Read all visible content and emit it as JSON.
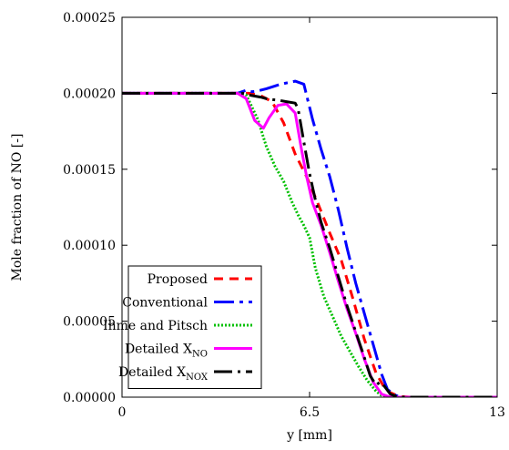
{
  "chart_data": {
    "type": "line",
    "xlabel": "y [mm]",
    "ylabel": "Mole fraction of NO [-]",
    "xlim": [
      0,
      13
    ],
    "ylim": [
      0,
      0.00025
    ],
    "x_ticks": [
      "0",
      "6.5",
      "13"
    ],
    "y_ticks": [
      "0.00000",
      "0.00005",
      "0.00010",
      "0.00015",
      "0.00020",
      "0.00025"
    ],
    "x_tick_values": [
      0,
      6.5,
      13
    ],
    "y_tick_values": [
      0,
      5e-05,
      0.0001,
      0.00015,
      0.0002,
      0.00025
    ],
    "grid": false,
    "legend_position": "bottom-left",
    "series": [
      {
        "name": "Proposed",
        "legend_main": "Proposed",
        "legend_sub": "",
        "color": "#ff0000",
        "dash": "10,7",
        "x": [
          0,
          1,
          2,
          3,
          4,
          4.4,
          4.8,
          5.2,
          5.6,
          6,
          6.4,
          6.8,
          7.2,
          7.6,
          8,
          8.4,
          8.8,
          9.1,
          9.3,
          9.6,
          10,
          11,
          12,
          13
        ],
        "y": [
          0.0002,
          0.0002,
          0.0002,
          0.0002,
          0.0002,
          0.0002,
          0.0001985,
          0.0001945,
          0.0001805,
          0.00016,
          0.000145,
          0.000127,
          0.000108,
          9e-05,
          6.5e-05,
          3.8e-05,
          1.6e-05,
          6e-06,
          3e-06,
          5e-07,
          0,
          0,
          0,
          0
        ]
      },
      {
        "name": "Conventional",
        "legend_main": "Conventional",
        "legend_sub": "",
        "color": "#0000ff",
        "dash": "22,6,4,6",
        "x": [
          0,
          1,
          2,
          3,
          4,
          4.3,
          4.5,
          4.7,
          5,
          5.5,
          6,
          6.3,
          6.6,
          6.9,
          7.2,
          7.5,
          7.8,
          8.1,
          8.4,
          8.7,
          9,
          9.2,
          9.5,
          9.8,
          10,
          11,
          12,
          13
        ],
        "y": [
          0.0002,
          0.0002,
          0.0002,
          0.0002,
          0.0002,
          0.000202,
          0.000201,
          0.0002015,
          0.000203,
          0.000206,
          0.000208,
          0.000206,
          0.000183,
          0.000163,
          0.000145,
          0.000123,
          9.8e-05,
          7.5e-05,
          5.5e-05,
          3.5e-05,
          1.5e-05,
          5e-06,
          1e-06,
          0,
          0,
          0,
          0,
          0
        ]
      },
      {
        "name": "Ihme and Pitsch",
        "legend_main": "Ihme and Pitsch",
        "legend_sub": "",
        "color": "#00c000",
        "dash": "2,2",
        "x": [
          0,
          1,
          2,
          3,
          4,
          4.3,
          4.7,
          5,
          5.3,
          5.6,
          5.9,
          6.1,
          6.3,
          6.5,
          6.7,
          7,
          7.3,
          7.6,
          7.9,
          8.2,
          8.5,
          8.8,
          9,
          9.3,
          9.6,
          10,
          11,
          12,
          13
        ],
        "y": [
          0.0002,
          0.0002,
          0.0002,
          0.0002,
          0.0002,
          0.000199,
          0.000183,
          0.000165,
          0.000152,
          0.000142,
          0.000128,
          0.00012,
          0.000113,
          0.000105,
          8.5e-05,
          6.6e-05,
          5.3e-05,
          4e-05,
          3e-05,
          2e-05,
          1.1e-05,
          4e-06,
          1e-06,
          0,
          0,
          0,
          0,
          0,
          0
        ]
      },
      {
        "name": "Detailed X_NO",
        "legend_main": "Detailed X",
        "legend_sub": "NO",
        "color": "#ff00ff",
        "dash": "none",
        "x": [
          0,
          1,
          2,
          3,
          4,
          4.3,
          4.6,
          4.9,
          5.1,
          5.4,
          5.7,
          6,
          6.2,
          6.4,
          6.6,
          6.9,
          7.2,
          7.5,
          7.8,
          8.1,
          8.4,
          8.7,
          9,
          9.3,
          9.6,
          10,
          11,
          12,
          13
        ],
        "y": [
          0.0002,
          0.0002,
          0.0002,
          0.0002,
          0.0002,
          0.0001965,
          0.000182,
          0.000177,
          0.000184,
          0.000192,
          0.000193,
          0.000187,
          0.000165,
          0.000145,
          0.000128,
          0.000113,
          9.5e-05,
          7.6e-05,
          5.8e-05,
          4.2e-05,
          2.5e-05,
          1e-05,
          2e-06,
          0,
          0,
          0,
          0,
          0,
          0
        ]
      },
      {
        "name": "Detailed X_NOX",
        "legend_main": "Detailed X",
        "legend_sub": "NOX",
        "color": "#000000",
        "dash": "20,6,3,6",
        "x": [
          0,
          1,
          2,
          3,
          4,
          4.2,
          4.5,
          4.8,
          5.1,
          5.4,
          5.7,
          6,
          6.1,
          6.3,
          6.5,
          6.7,
          6.9,
          7.2,
          7.5,
          7.8,
          8.1,
          8.4,
          8.6,
          8.8,
          8.95,
          9.1,
          9.3,
          9.6,
          10,
          11,
          12,
          13
        ],
        "y": [
          0.0002,
          0.0002,
          0.0002,
          0.0002,
          0.0002,
          0.0002,
          0.0001985,
          0.0001975,
          0.000196,
          0.0001955,
          0.0001945,
          0.0001935,
          0.00019,
          0.000168,
          0.000147,
          0.00013,
          0.000115,
          9.8e-05,
          7.9e-05,
          6e-05,
          4.3e-05,
          2.6e-05,
          1.4e-05,
          8e-06,
          1e-05,
          7e-06,
          2e-06,
          0,
          0,
          0,
          0,
          0
        ]
      }
    ]
  }
}
